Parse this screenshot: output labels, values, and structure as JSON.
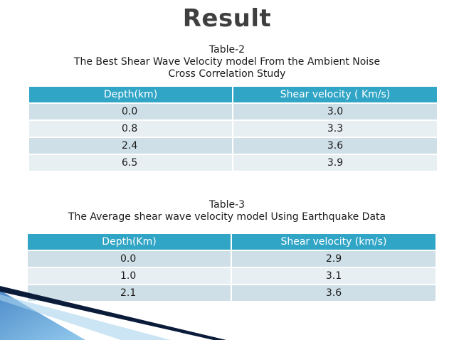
{
  "slide": {
    "title": "Result"
  },
  "table2": {
    "label": "Table-2",
    "caption_line1": "The Best Shear Wave Velocity model  From the Ambient Noise",
    "caption_line2": "Cross Correlation Study",
    "headers": [
      "Depth(km)",
      "Shear velocity ( Km/s)"
    ],
    "rows": [
      [
        "0.0",
        "3.0"
      ],
      [
        "0.8",
        "3.3"
      ],
      [
        "2.4",
        "3.6"
      ],
      [
        "6.5",
        "3.9"
      ]
    ]
  },
  "table3": {
    "label": "Table-3",
    "caption_line1": "The Average shear wave velocity  model  Using  Earthquake Data",
    "headers": [
      "Depth(Km)",
      "Shear velocity (km/s)"
    ],
    "rows": [
      [
        "0.0",
        "2.9"
      ],
      [
        "1.0",
        "3.1"
      ],
      [
        "2.1",
        "3.6"
      ]
    ]
  },
  "colors": {
    "header_bg": "#31a5c6",
    "row_odd": "#cfdfe7",
    "row_even": "#e7eff3",
    "accent_dark": "#0b1b3a",
    "accent_blue": "#3d7fbf"
  }
}
